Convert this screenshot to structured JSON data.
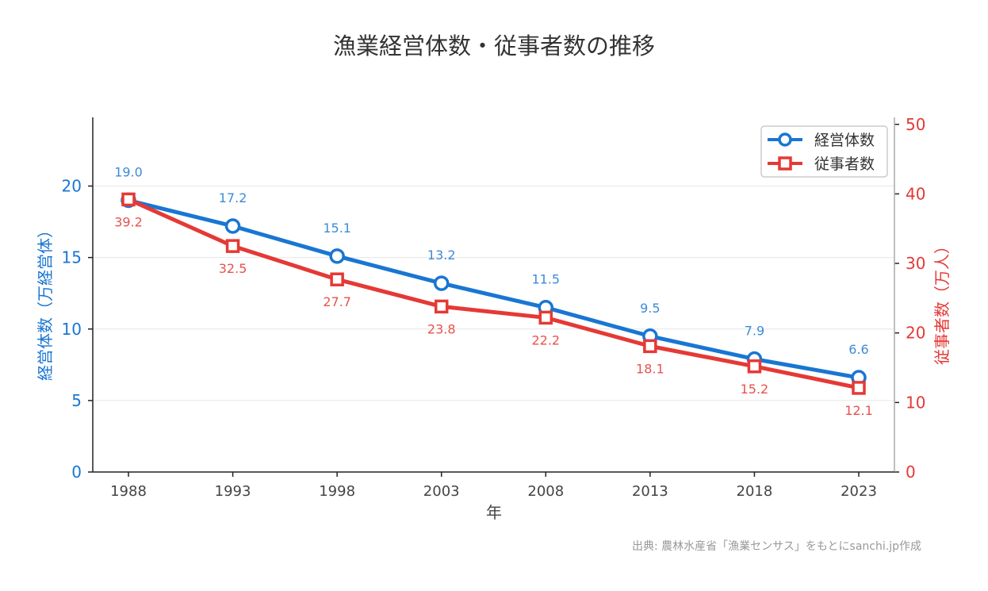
{
  "chart_data": {
    "type": "line",
    "title": "漁業経営体数・従事者数の推移",
    "xlabel": "年",
    "ylabel_left": "経営体数（万経営体）",
    "ylabel_right": "従事者数（万人）",
    "categories": [
      "1988",
      "1993",
      "1998",
      "2003",
      "2008",
      "2013",
      "2018",
      "2023"
    ],
    "ylim_left": [
      0,
      24.8
    ],
    "ylim_right": [
      0,
      51
    ],
    "yticks_left": [
      0,
      5,
      10,
      15,
      20
    ],
    "yticks_right": [
      0,
      10,
      20,
      30,
      40,
      50
    ],
    "grid": "horizontal",
    "legend_position": "top-right",
    "series": [
      {
        "name": "経営体数",
        "axis": "left",
        "marker": "circle",
        "color": "#1976d2",
        "label_color": "#3d8bd9",
        "values": [
          19.0,
          17.2,
          15.1,
          13.2,
          11.5,
          9.5,
          7.9,
          6.6
        ],
        "labels": [
          "19.0",
          "17.2",
          "15.1",
          "13.2",
          "11.5",
          "9.5",
          "7.9",
          "6.6"
        ]
      },
      {
        "name": "従事者数",
        "axis": "right",
        "marker": "square",
        "color": "#e53935",
        "label_color": "#e8524e",
        "values": [
          39.2,
          32.5,
          27.7,
          23.8,
          22.2,
          18.1,
          15.2,
          12.1
        ],
        "labels": [
          "39.2",
          "32.5",
          "27.7",
          "23.8",
          "22.2",
          "18.1",
          "15.2",
          "12.1"
        ]
      }
    ],
    "source": "出典: 農林水産省「漁業センサス」をもとにsanchi.jp作成"
  }
}
